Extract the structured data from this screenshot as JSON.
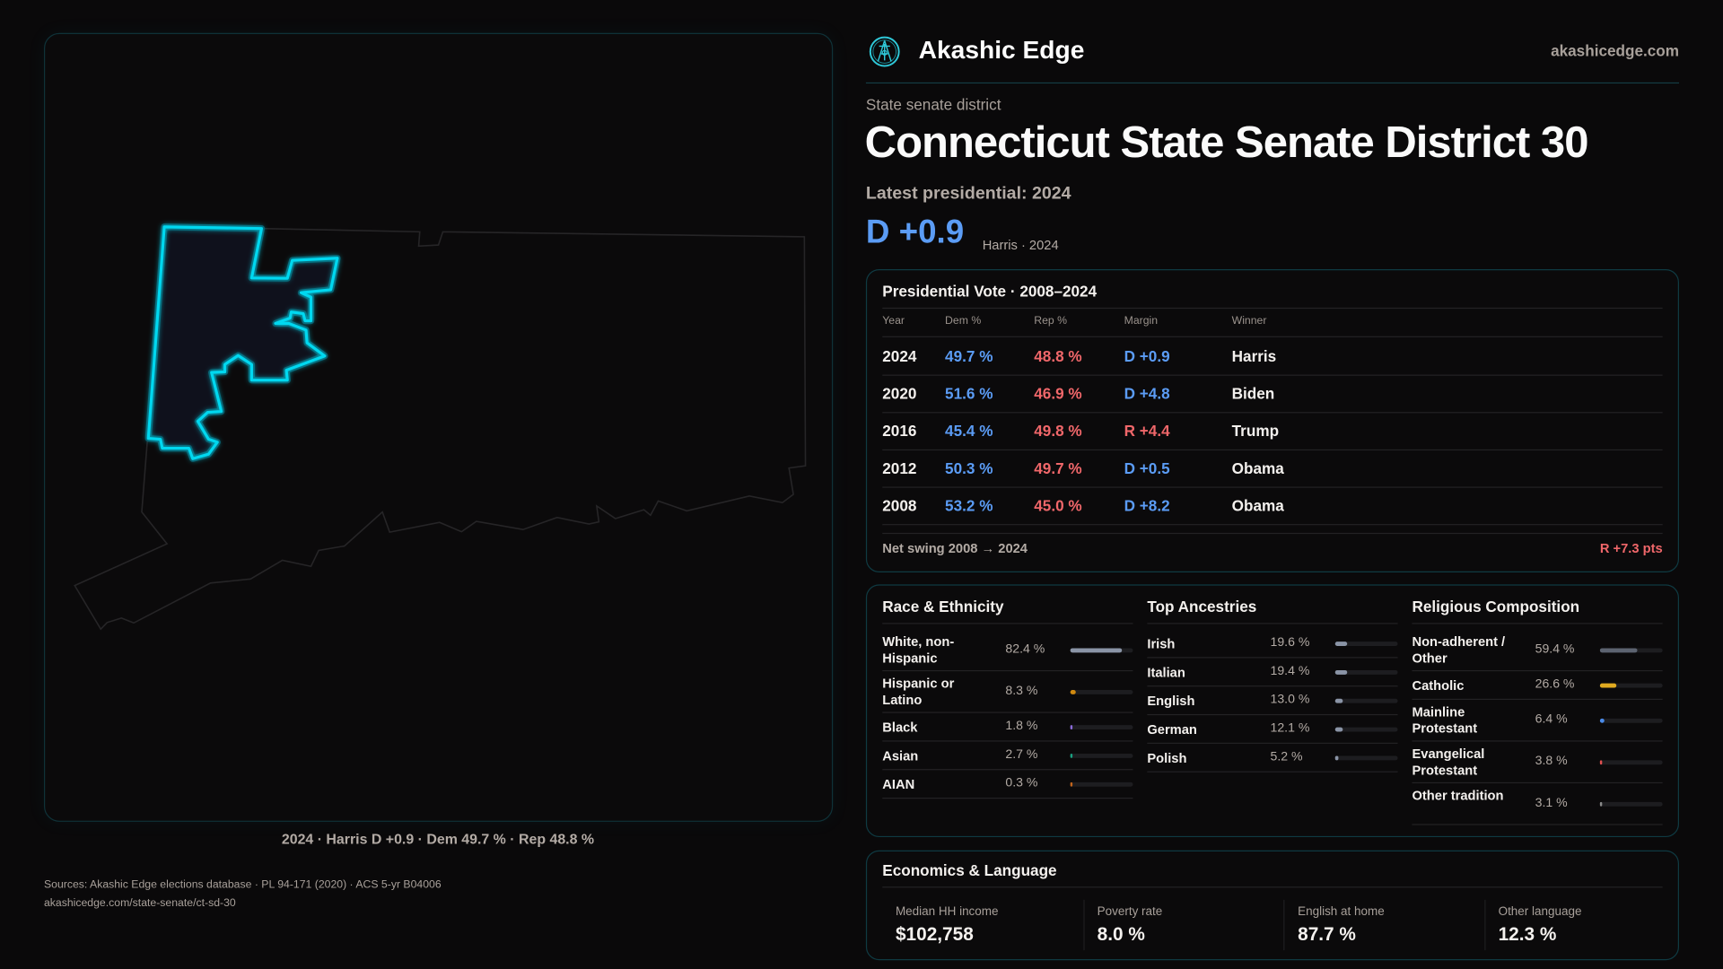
{
  "brand": {
    "name": "Akashic Edge",
    "domain": "akashicedge.com",
    "logo_icon": "akashic-edge-logo"
  },
  "colors": {
    "accent": "#00d8f0",
    "dem": "#5b9cf5",
    "rep": "#f0676a",
    "background": "#0a090a"
  },
  "header": {
    "kicker": "State senate district",
    "title": "Connecticut State Senate District 30",
    "latest": "Latest presidential: 2024",
    "margin": "D +0.9",
    "margin_sub": "Harris · 2024"
  },
  "map": {
    "caption": "2024 · Harris D +0.9 · Dem 49.7 % · Rep 48.8 %",
    "highlight_color": "#00d8f0"
  },
  "presidential": {
    "title": "Presidential Vote · 2008–2024",
    "columns": [
      "Year",
      "Dem %",
      "Rep %",
      "Margin",
      "Winner"
    ],
    "rows": [
      {
        "year": "2024",
        "dem": "49.7 %",
        "rep": "48.8 %",
        "margin": "D +0.9",
        "party": "D",
        "winner": "Harris"
      },
      {
        "year": "2020",
        "dem": "51.6 %",
        "rep": "46.9 %",
        "margin": "D +4.8",
        "party": "D",
        "winner": "Biden"
      },
      {
        "year": "2016",
        "dem": "45.4 %",
        "rep": "49.8 %",
        "margin": "R +4.4",
        "party": "R",
        "winner": "Trump"
      },
      {
        "year": "2012",
        "dem": "50.3 %",
        "rep": "49.7 %",
        "margin": "D +0.5",
        "party": "D",
        "winner": "Obama"
      },
      {
        "year": "2008",
        "dem": "53.2 %",
        "rep": "45.0 %",
        "margin": "D +8.2",
        "party": "D",
        "winner": "Obama"
      }
    ],
    "swing_label": "Net swing 2008 → 2024",
    "swing_value": "R +7.3 pts"
  },
  "demographics": [
    {
      "title": "Race & Ethnicity",
      "items": [
        {
          "label": "White, non-Hispanic",
          "value": "82.4 %",
          "pct": 82.4,
          "color": "#8a94a6"
        },
        {
          "label": "Hispanic or Latino",
          "value": "8.3 %",
          "pct": 8.3,
          "color": "#d08a10"
        },
        {
          "label": "Black",
          "value": "1.8 %",
          "pct": 1.8,
          "color": "#8a6ad8"
        },
        {
          "label": "Asian",
          "value": "2.7 %",
          "pct": 2.7,
          "color": "#1aa080"
        },
        {
          "label": "AIAN",
          "value": "0.3 %",
          "pct": 0.3,
          "color": "#c0641c"
        }
      ]
    },
    {
      "title": "Top Ancestries",
      "items": [
        {
          "label": "Irish",
          "value": "19.6 %",
          "pct": 19.6,
          "color": "#8a94a6"
        },
        {
          "label": "Italian",
          "value": "19.4 %",
          "pct": 19.4,
          "color": "#8a94a6"
        },
        {
          "label": "English",
          "value": "13.0 %",
          "pct": 13.0,
          "color": "#8a94a6"
        },
        {
          "label": "German",
          "value": "12.1 %",
          "pct": 12.1,
          "color": "#8a94a6"
        },
        {
          "label": "Polish",
          "value": "5.2 %",
          "pct": 5.2,
          "color": "#8a94a6"
        }
      ]
    },
    {
      "title": "Religious Composition",
      "items": [
        {
          "label": "Non-adherent / Other",
          "value": "59.4 %",
          "pct": 59.4,
          "color": "#5c6370"
        },
        {
          "label": "Catholic",
          "value": "26.6 %",
          "pct": 26.6,
          "color": "#e0aa20"
        },
        {
          "label": "Mainline Protestant",
          "value": "6.4 %",
          "pct": 6.4,
          "color": "#4a8ae8"
        },
        {
          "label": "Evangelical Protestant",
          "value": "3.8 %",
          "pct": 3.8,
          "color": "#e05050"
        },
        {
          "label": "Other tradition",
          "value": "3.1 %",
          "pct": 3.1,
          "color": "#8a8a8a"
        }
      ]
    }
  ],
  "economics": {
    "title": "Economics & Language",
    "stats": [
      {
        "label": "Median HH income",
        "value": "$102,758"
      },
      {
        "label": "Poverty rate",
        "value": "8.0 %"
      },
      {
        "label": "English at home",
        "value": "87.7 %"
      },
      {
        "label": "Other language",
        "value": "12.3 %"
      }
    ]
  },
  "footer": {
    "sources": "Sources: Akashic Edge elections database · PL 94-171 (2020) · ACS 5-yr B04006",
    "url": "akashicedge.com/state-senate/ct-sd-30"
  }
}
